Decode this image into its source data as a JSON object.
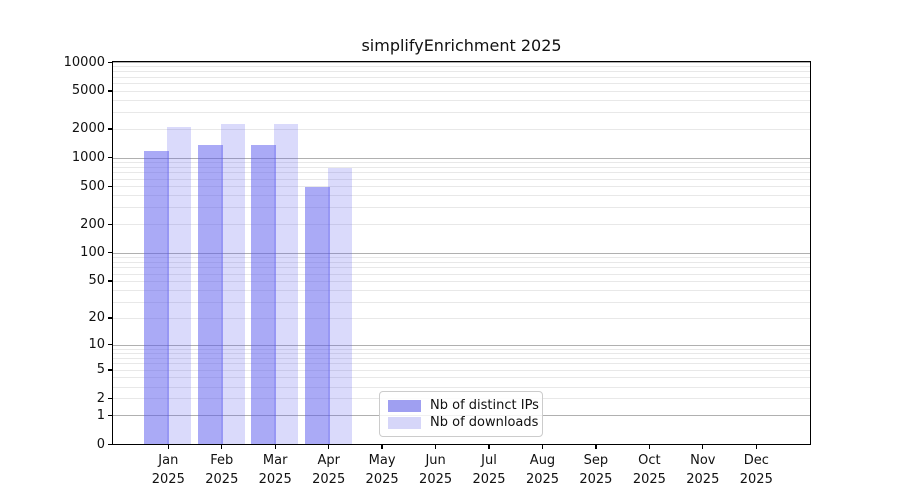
{
  "title": "simplifyEnrichment 2025",
  "chart_data": {
    "type": "bar",
    "title": "simplifyEnrichment 2025",
    "categories": [
      "Jan",
      "Feb",
      "Mar",
      "Apr",
      "May",
      "Jun",
      "Jul",
      "Aug",
      "Sep",
      "Oct",
      "Nov",
      "Dec"
    ],
    "year_label": "2025",
    "series": [
      {
        "name": "Nb of distinct IPs",
        "bar_color": "rgba(85,85,237,0.5)",
        "legend_color": "#9f9ff1",
        "values": [
          1170,
          1340,
          1345,
          487,
          0,
          0,
          0,
          0,
          0,
          0,
          0,
          0
        ]
      },
      {
        "name": "Nb of downloads",
        "bar_color": "rgba(85,85,237,0.22)",
        "legend_color": "#d6d6f9",
        "values": [
          2070,
          2250,
          2260,
          778,
          0,
          0,
          0,
          0,
          0,
          0,
          0,
          0
        ]
      }
    ],
    "yscale": "log1p",
    "ylim": [
      0,
      10000
    ],
    "ytick_labels": [
      "10000",
      "5000",
      "2000",
      "1000",
      "500",
      "200",
      "100",
      "50",
      "20",
      "10",
      "5",
      "2",
      "1",
      "0"
    ],
    "ytick_values": [
      10000,
      5000,
      2000,
      1000,
      500,
      200,
      100,
      50,
      20,
      10,
      5,
      2,
      1,
      0
    ],
    "grid": "on",
    "grid_major_color": "#b0b0b0",
    "grid_minor_color": "#e8e8e8",
    "legend_position": "bottom-center"
  }
}
